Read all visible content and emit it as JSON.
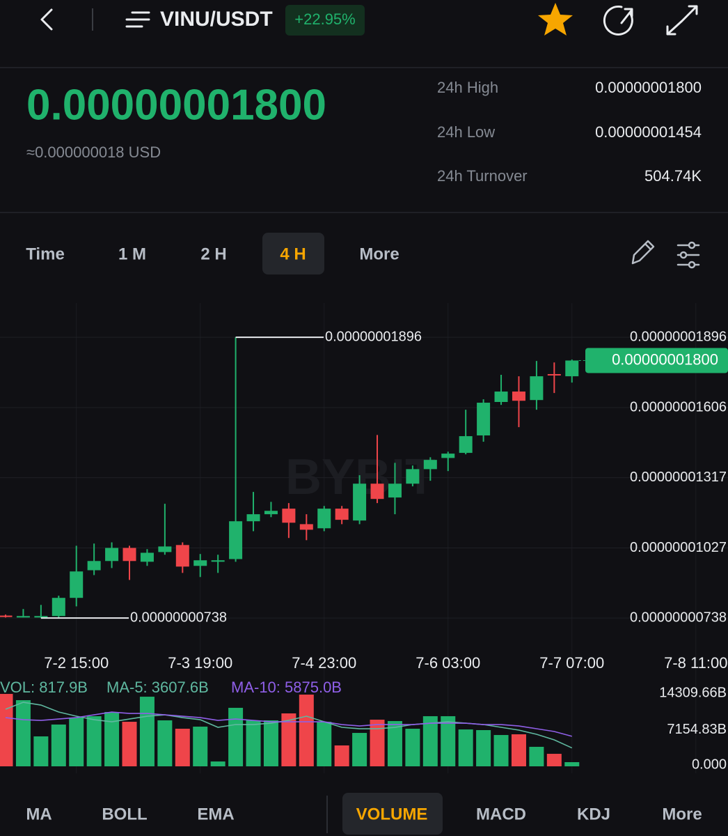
{
  "header": {
    "pair": "VINU/USDT",
    "change": "+22.95%"
  },
  "price": {
    "last": "0.00000001800",
    "usd": "≈0.000000018 USD"
  },
  "stats": [
    {
      "label": "24h High",
      "value": "0.00000001800"
    },
    {
      "label": "24h Low",
      "value": "0.00000001454"
    },
    {
      "label": "24h Turnover",
      "value": "504.74K"
    }
  ],
  "intervals": {
    "items": [
      "Time",
      "1 M",
      "2 H",
      "4 H",
      "More"
    ],
    "active": 3
  },
  "indicators": {
    "items": [
      "MA",
      "BOLL",
      "EMA",
      "VOLUME",
      "MACD",
      "KDJ",
      "More"
    ],
    "active": 3
  },
  "chart_data": [
    {
      "type": "candlestick",
      "watermark": "BYBIT",
      "categories": [
        null,
        null,
        null,
        null,
        "7-2 15:00",
        null,
        null,
        null,
        null,
        null,
        null,
        "7-3 19:00",
        null,
        null,
        null,
        null,
        null,
        null,
        "7-4 23:00",
        null,
        null,
        null,
        null,
        null,
        null,
        "7-6 03:00",
        null,
        null,
        null,
        null,
        null,
        null,
        "7-7 07:00",
        null,
        null,
        null,
        null,
        null,
        null,
        "7-8 11:00"
      ],
      "open": [
        7.48e-09,
        7.4e-09,
        7.4e-09,
        7.46e-09,
        8.21e-09,
        9.35e-09,
        9.73e-09,
        1.027e-08,
        9.7e-09,
        1.01e-08,
        1.039e-08,
        9.53e-09,
        9.7e-09,
        9.81e-09,
        1.137e-08,
        1.166e-08,
        1.189e-08,
        1.125e-08,
        1.108e-08,
        1.189e-08,
        1.14e-08,
        1.292e-08,
        1.235e-08,
        1.292e-08,
        1.352e-08,
        1.398e-08,
        1.419e-08,
        1.491e-08,
        1.629e-08,
        1.672e-08,
        1.637e-08,
        1.744e-08,
        1.735e-08,
        null,
        null,
        null,
        null,
        null,
        null,
        null
      ],
      "high": [
        7.52e-09,
        7.75e-09,
        7.92e-09,
        8.3e-09,
        1.036e-08,
        1.045e-08,
        1.05e-08,
        1.036e-08,
        1.022e-08,
        1.209e-08,
        1.05e-08,
        1.002e-08,
        9.99e-09,
        1.896e-08,
        1.258e-08,
        1.217e-08,
        1.212e-08,
        1.166e-08,
        1.2e-08,
        1.2e-08,
        1.327e-08,
        1.493e-08,
        1.378e-08,
        1.367e-08,
        1.401e-08,
        1.424e-08,
        1.597e-08,
        1.64e-08,
        1.741e-08,
        1.735e-08,
        1.798e-08,
        1.792e-08,
        1.804e-08,
        null,
        null,
        null,
        null,
        null,
        null,
        null
      ],
      "low": [
        7.4e-09,
        7.4e-09,
        7.38e-09,
        7.4e-09,
        7.86e-09,
        9.15e-09,
        9.44e-09,
        8.95e-09,
        9.53e-09,
        9.99e-09,
        9.24e-09,
        9.07e-09,
        9.24e-09,
        9.7e-09,
        1.096e-08,
        1.154e-08,
        1.068e-08,
        1.059e-08,
        1.096e-08,
        1.125e-08,
        1.125e-08,
        1.212e-08,
        1.166e-08,
        1.281e-08,
        1.304e-08,
        1.344e-08,
        1.413e-08,
        1.465e-08,
        1.617e-08,
        1.525e-08,
        1.597e-08,
        1.666e-08,
        1.709e-08,
        null,
        null,
        null,
        null,
        null,
        null,
        null
      ],
      "close": [
        7.42e-09,
        7.46e-09,
        7.46e-09,
        8.21e-09,
        9.3e-09,
        9.73e-09,
        1.027e-08,
        9.73e-09,
        1.007e-08,
        1.033e-08,
        9.5e-09,
        9.76e-09,
        9.76e-09,
        1.137e-08,
        1.166e-08,
        1.18e-08,
        1.131e-08,
        1.102e-08,
        1.189e-08,
        1.143e-08,
        1.292e-08,
        1.229e-08,
        1.292e-08,
        1.352e-08,
        1.39e-08,
        1.416e-08,
        1.488e-08,
        1.626e-08,
        1.672e-08,
        1.634e-08,
        1.735e-08,
        1.741e-08,
        1.8e-08,
        null,
        null,
        null,
        null,
        null,
        null,
        null
      ],
      "up_color": "#20b26c",
      "down_color": "#ef454a",
      "ylim": [
        6.29e-09,
        2.037e-08
      ],
      "yticks": [
        {
          "value": 1.896e-08,
          "label": "0.00000001896"
        },
        {
          "value": 1.606e-08,
          "label": "0.00000001606"
        },
        {
          "value": 1.317e-08,
          "label": "0.00000001317"
        },
        {
          "value": 1.027e-08,
          "label": "0.00000001027"
        },
        {
          "value": 7.38e-09,
          "label": "0.00000000738"
        }
      ],
      "grid": true,
      "max_label": "0.00000001896",
      "min_label": "0.00000000738",
      "last_label": "0.00000001800"
    },
    {
      "type": "bar",
      "volume_label": "VOL: 817.9B",
      "volume_label_color": "#5fb8a0",
      "values": [
        14175,
        12950,
        5860,
        8180,
        9540,
        9810,
        10630,
        8720,
        13630,
        9000,
        7360,
        7770,
        950,
        11450,
        9000,
        9000,
        10360,
        14040,
        8720,
        4090,
        6540,
        9130,
        8860,
        7360,
        9810,
        9810,
        7220,
        7090,
        6130,
        6270,
        3820,
        2450,
        817.9,
        null,
        null,
        null,
        null,
        null,
        null,
        null
      ],
      "series": [
        {
          "name": "MA-5: 3607.6B",
          "color": "#5fb8a0",
          "values": [
            11177,
            12540,
            11994,
            10631,
            9814,
            9132,
            8723,
            9268,
            9814,
            10086,
            9541,
            9132,
            7633,
            8178,
            8178,
            8451,
            8996,
            9814,
            8723,
            7633,
            7360,
            7360,
            7633,
            8178,
            8451,
            8723,
            8451,
            8178,
            7633,
            7088,
            6270,
            5179,
            3607.6,
            null,
            null,
            null,
            null,
            null,
            null,
            null
          ]
        },
        {
          "name": "MA-10: 5875.0B",
          "color": "#8f5fe8",
          "values": [
            9541,
            9132,
            8996,
            9268,
            9541,
            10086,
            10631,
            10359,
            10359,
            10086,
            9814,
            9541,
            8996,
            9268,
            8996,
            8723,
            8723,
            8723,
            8723,
            8178,
            7905,
            8178,
            8178,
            8178,
            8451,
            8451,
            8451,
            8178,
            8178,
            7905,
            7360,
            6815,
            5875.0,
            null,
            null,
            null,
            null,
            null,
            null,
            null
          ]
        }
      ],
      "ylim": [
        0,
        15680
      ],
      "yticks": [
        {
          "value": 14309.66,
          "label": "14309.66B"
        },
        {
          "value": 7154.83,
          "label": "7154.83B"
        },
        {
          "value": 0,
          "label": "0.000"
        }
      ]
    }
  ]
}
